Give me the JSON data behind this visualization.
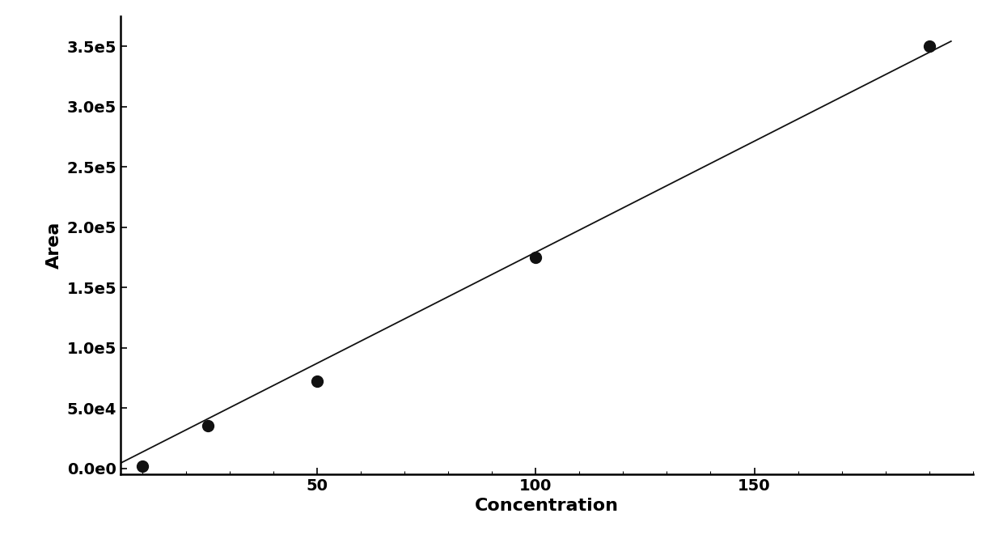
{
  "x_data": [
    10,
    25,
    50,
    100,
    190
  ],
  "y_data": [
    2000,
    35000,
    72000,
    175000,
    350000
  ],
  "line_x_start": 5,
  "line_x_end": 195,
  "line_slope": 1842,
  "line_intercept": -5000,
  "xlabel": "Concentration",
  "ylabel": "Area",
  "xlim": [
    5,
    200
  ],
  "ylim": [
    -5000,
    375000
  ],
  "yticks": [
    0,
    50000,
    100000,
    150000,
    200000,
    250000,
    300000,
    350000
  ],
  "xticks": [
    50,
    100,
    150
  ],
  "scatter_color": "#111111",
  "line_color": "#111111",
  "scatter_size": 100,
  "line_width": 1.3,
  "background_color": "#ffffff",
  "xlabel_fontsize": 16,
  "ylabel_fontsize": 16,
  "tick_fontsize": 14
}
